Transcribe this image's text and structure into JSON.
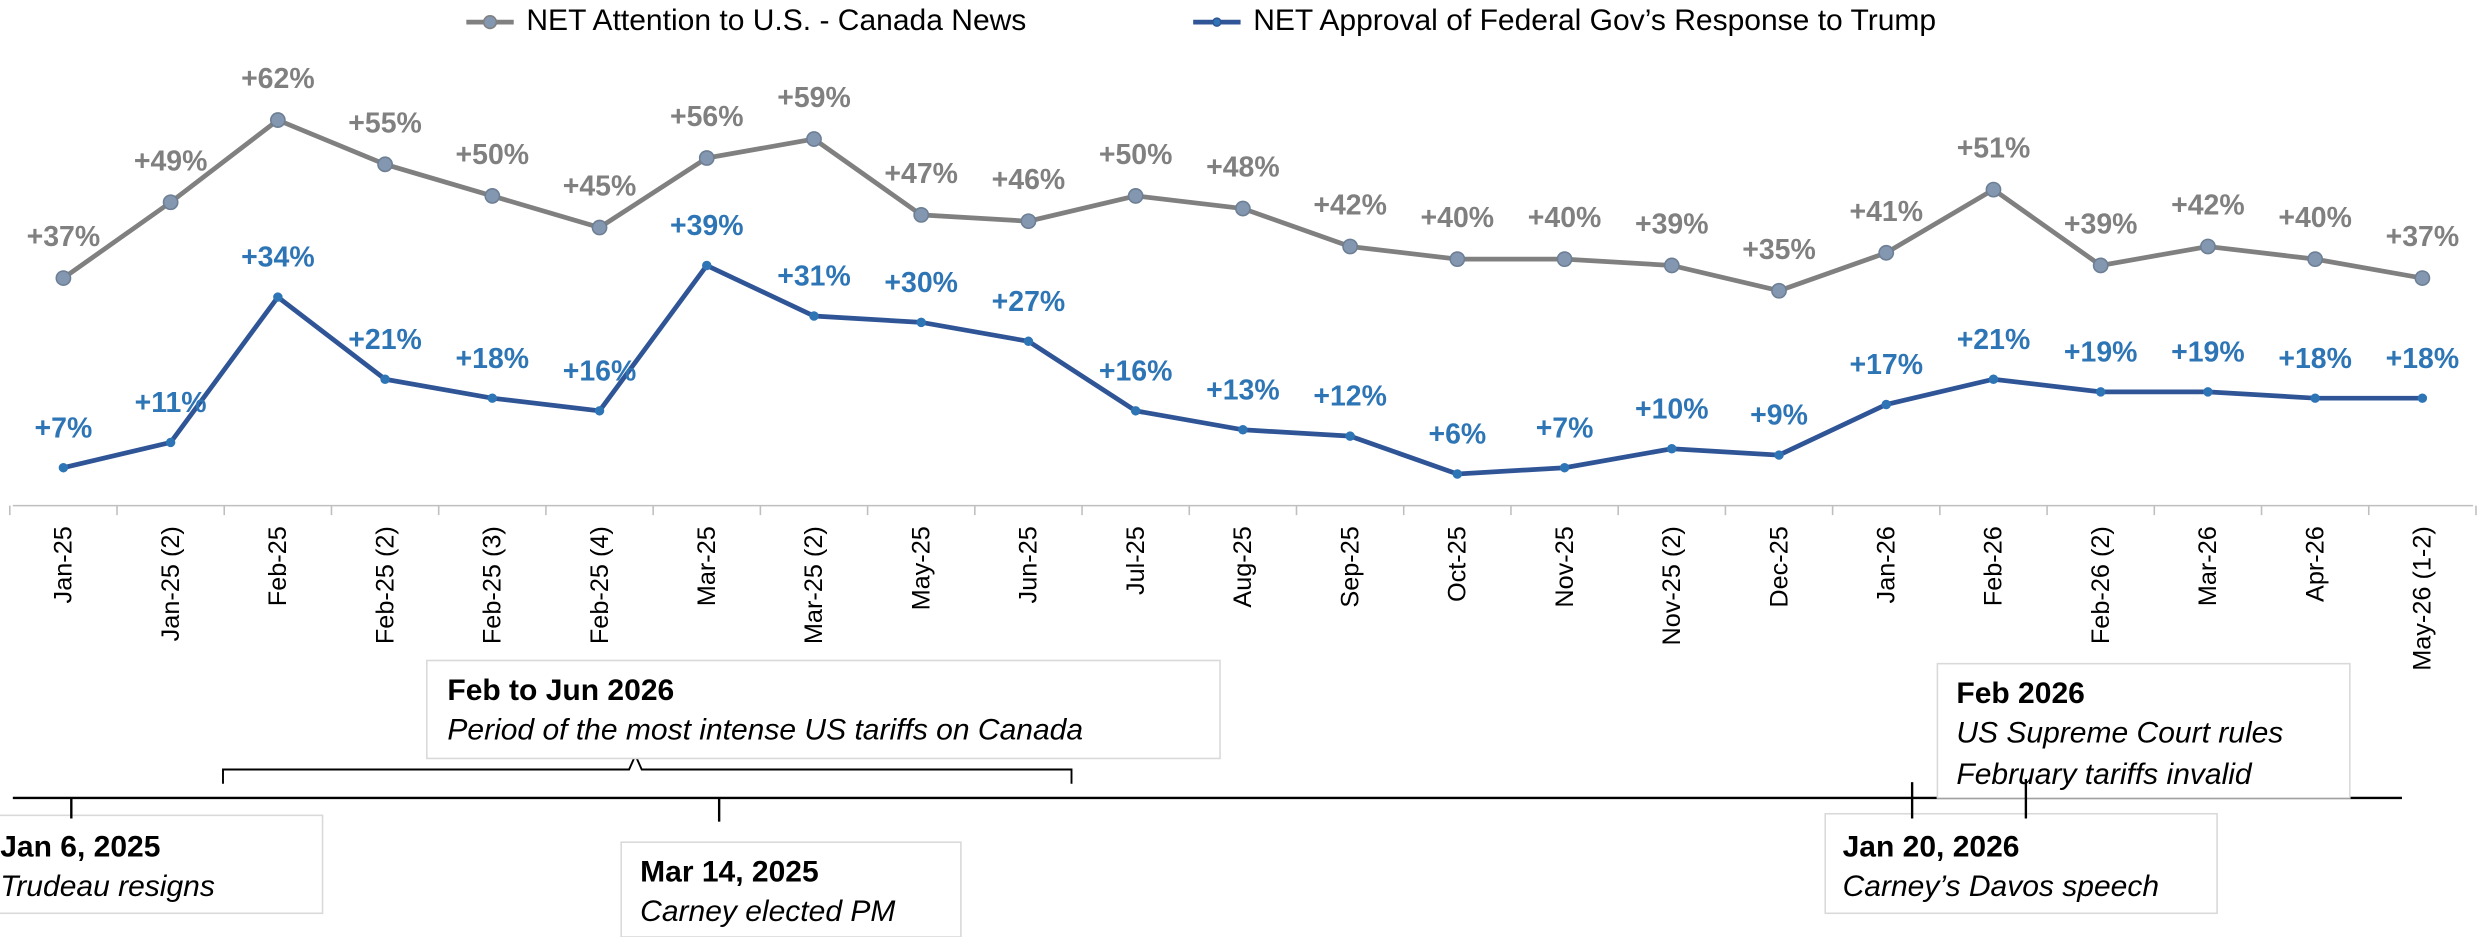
{
  "chart_data": {
    "type": "line",
    "categories": [
      "Jan-25",
      "Jan-25 (2)",
      "Feb-25",
      "Feb-25 (2)",
      "Feb-25 (3)",
      "Feb-25 (4)",
      "Mar-25",
      "Mar-25 (2)",
      "May-25",
      "Jun-25",
      "Jul-25",
      "Aug-25",
      "Sep-25",
      "Oct-25",
      "Nov-25",
      "Nov-25 (2)",
      "Dec-25",
      "Jan-26",
      "Feb-26",
      "Feb-26 (2)",
      "Mar-26",
      "Apr-26",
      "May-26 (1-2)"
    ],
    "series": [
      {
        "name": "NET Attention to U.S. - Canada News",
        "color": "#808080",
        "marker_color": "#8497b0",
        "values": [
          37,
          49,
          62,
          55,
          50,
          45,
          56,
          59,
          47,
          46,
          50,
          48,
          42,
          40,
          40,
          39,
          35,
          41,
          51,
          39,
          42,
          40,
          37
        ],
        "value_labels": [
          "+37%",
          "+49%",
          "+62%",
          "+55%",
          "+50%",
          "+45%",
          "+56%",
          "+59%",
          "+47%",
          "+46%",
          "+50%",
          "+48%",
          "+42%",
          "+40%",
          "+40%",
          "+39%",
          "+35%",
          "+41%",
          "+51%",
          "+39%",
          "+42%",
          "+40%",
          "+37%"
        ]
      },
      {
        "name": "NET Approval of Federal Gov’s Response to Trump",
        "color": "#2f5597",
        "marker_color": "#2e75b6",
        "values": [
          7,
          11,
          34,
          21,
          18,
          16,
          39,
          31,
          30,
          27,
          16,
          13,
          12,
          6,
          7,
          10,
          9,
          17,
          21,
          19,
          19,
          18,
          18
        ],
        "value_labels": [
          "+7%",
          "+11%",
          "+34%",
          "+21%",
          "+18%",
          "+16%",
          "+39%",
          "+31%",
          "+30%",
          "+27%",
          "+16%",
          "+13%",
          "+12%",
          "+6%",
          "+7%",
          "+10%",
          "+9%",
          "+17%",
          "+21%",
          "+19%",
          "+19%",
          "+18%",
          "+18%"
        ]
      }
    ],
    "annotations": [
      {
        "title": "Feb to Jun 2026",
        "lines": [
          "Period of the most intense US tariffs on Canada"
        ]
      },
      {
        "title": "Jan 6, 2025",
        "lines": [
          "Trudeau resigns"
        ]
      },
      {
        "title": "Mar 14, 2025",
        "lines": [
          "Carney elected PM"
        ]
      },
      {
        "title": "Jan 20, 2026",
        "lines": [
          "Carney’s Davos speech"
        ]
      },
      {
        "title": "Feb 2026",
        "lines": [
          "US Supreme Court rules",
          "February tariffs invalid"
        ]
      }
    ]
  }
}
